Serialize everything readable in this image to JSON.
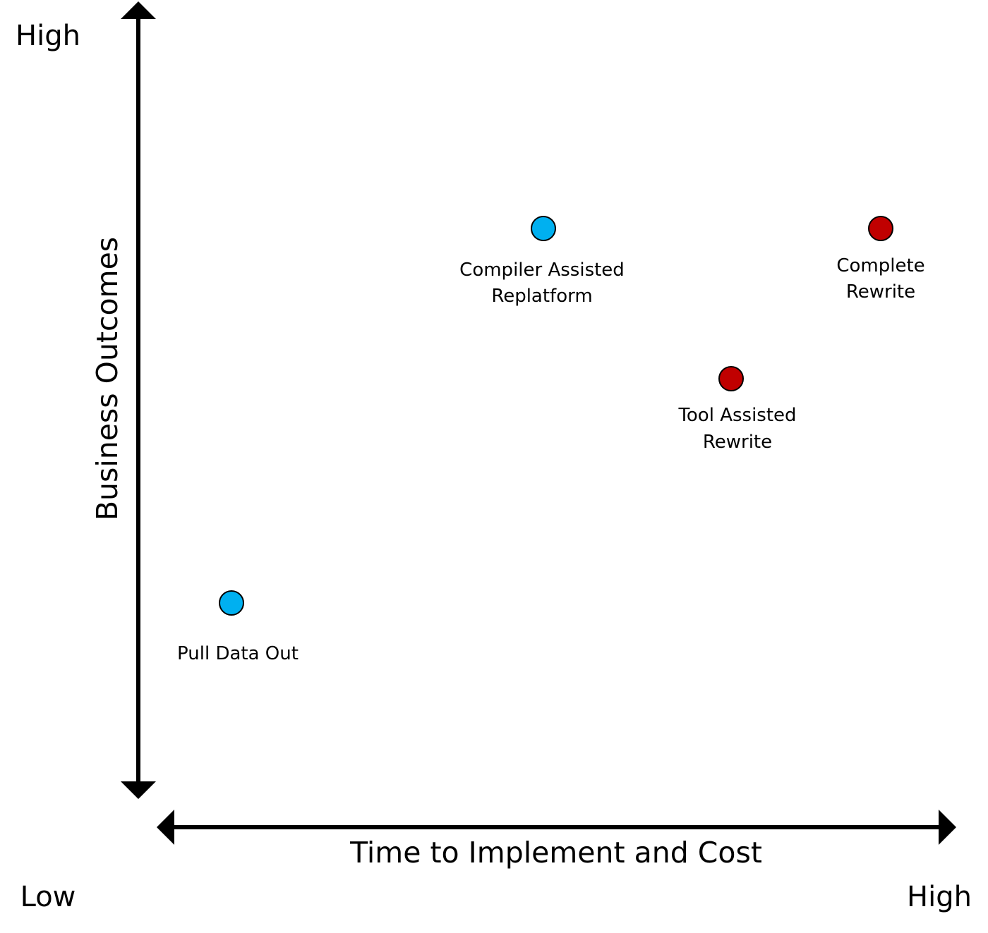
{
  "y_axis": {
    "title": "Business Outcomes",
    "high_label": "High"
  },
  "x_axis": {
    "title": "Time to Implement and Cost",
    "low_label": "Low",
    "high_label": "High"
  },
  "colors": {
    "axis": "#000000",
    "blue_point": "#00b0f0",
    "red_point": "#c00000",
    "point_stroke": "#000000"
  },
  "points": [
    {
      "name": "pull-data-out",
      "label_lines": [
        "Pull Data Out"
      ],
      "color": "blue_point"
    },
    {
      "name": "compiler-assisted-replatform",
      "label_lines": [
        "Compiler Assisted",
        "Replatform"
      ],
      "color": "blue_point"
    },
    {
      "name": "tool-assisted-rewrite",
      "label_lines": [
        "Tool Assisted",
        "Rewrite"
      ],
      "color": "red_point"
    },
    {
      "name": "complete-rewrite",
      "label_lines": [
        "Complete",
        "Rewrite"
      ],
      "color": "red_point"
    }
  ]
}
